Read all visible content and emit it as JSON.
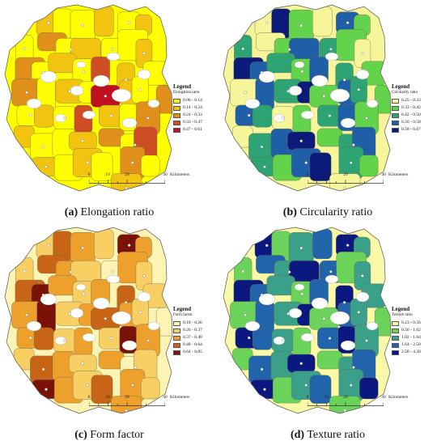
{
  "panels": [
    {
      "caption_letter": "(a)",
      "caption_text": "Elongation ratio",
      "legend_title": "Legend",
      "legend_field": "Elongation ratio",
      "classes": [
        {
          "label": "0.06 - 0.14",
          "color": "#ffff00"
        },
        {
          "label": "0.14 - 0.24",
          "color": "#f2c40f"
        },
        {
          "label": "0.24 - 0.33",
          "color": "#e0901a"
        },
        {
          "label": "0.33 - 0.47",
          "color": "#cf4d22"
        },
        {
          "label": "0.47 - 0.61",
          "color": "#c0101f"
        }
      ],
      "scale_ticks": [
        "0",
        "10",
        "20",
        "40"
      ],
      "scale_unit": "Kilometers"
    },
    {
      "caption_letter": "(b)",
      "caption_text": "Circularity ratio",
      "legend_title": "Legend",
      "legend_field": "Circularity ratio",
      "classes": [
        {
          "label": "0.25 - 0.33",
          "color": "#f7f59a"
        },
        {
          "label": "0.33 - 0.42",
          "color": "#63d34c"
        },
        {
          "label": "0.42 - 0.50",
          "color": "#2ea474"
        },
        {
          "label": "0.50 - 0.58",
          "color": "#1f5fa8"
        },
        {
          "label": "0.58 - 0.67",
          "color": "#0c1a7a"
        }
      ],
      "scale_ticks": [
        "0",
        "10",
        "20",
        "40"
      ],
      "scale_unit": "Kilometers"
    },
    {
      "caption_letter": "(c)",
      "caption_text": "Form factor",
      "legend_title": "Legend",
      "legend_field": "Form factor",
      "classes": [
        {
          "label": "0.18 - 0.26",
          "color": "#fdf4b4"
        },
        {
          "label": "0.26 - 0.37",
          "color": "#f7cf62"
        },
        {
          "label": "0.37 - 0.48",
          "color": "#eda02c"
        },
        {
          "label": "0.48 - 0.64",
          "color": "#c76416"
        },
        {
          "label": "0.64 - 0.85",
          "color": "#7a1208"
        }
      ],
      "scale_ticks": [
        "0",
        "10",
        "20",
        "40"
      ],
      "scale_unit": "Kilometers"
    },
    {
      "caption_letter": "(d)",
      "caption_text": "Texture ratio",
      "legend_title": "Legend",
      "legend_field": "Texture ratio",
      "classes": [
        {
          "label": "0.23 - 0.56",
          "color": "#f9f9a8"
        },
        {
          "label": "0.56 - 1.02",
          "color": "#6cd35a"
        },
        {
          "label": "1.02 - 1.64",
          "color": "#3aa08a"
        },
        {
          "label": "1.64 - 2.50",
          "color": "#2164ab"
        },
        {
          "label": "2.50 - 4.30",
          "color": "#0b1880"
        }
      ],
      "scale_ticks": [
        "0",
        "10",
        "20",
        "40"
      ],
      "scale_unit": "Kilometers"
    }
  ],
  "map_classes": [
    [
      1,
      0,
      0,
      1,
      0,
      1,
      0,
      2,
      0,
      1,
      0,
      0,
      1,
      2,
      0,
      1,
      0,
      3,
      1,
      0,
      2,
      0,
      1,
      0,
      4,
      1,
      0,
      2,
      0,
      1,
      0,
      3,
      1,
      0,
      2,
      1,
      0,
      0,
      1,
      2,
      0,
      3,
      1,
      0,
      1,
      0,
      2,
      0,
      1,
      0,
      4,
      1,
      0,
      2,
      0,
      1,
      0,
      0
    ],
    [
      0,
      4,
      1,
      0,
      3,
      1,
      2,
      0,
      1,
      3,
      2,
      1,
      0,
      4,
      3,
      2,
      1,
      3,
      2,
      1,
      0,
      3,
      2,
      4,
      1,
      3,
      2,
      1,
      3,
      2,
      0,
      1,
      2,
      3,
      1,
      0,
      2,
      3,
      4,
      1,
      2,
      3,
      2,
      1,
      3,
      4,
      2,
      1,
      0,
      3,
      2,
      1,
      4,
      2,
      3,
      1,
      0,
      2
    ],
    [
      1,
      3,
      2,
      1,
      4,
      2,
      1,
      3,
      2,
      1,
      0,
      2,
      1,
      3,
      4,
      2,
      1,
      2,
      3,
      1,
      2,
      4,
      1,
      2,
      3,
      2,
      1,
      0,
      2,
      3,
      1,
      2,
      1,
      4,
      2,
      1,
      3,
      2,
      1,
      2,
      0,
      1,
      4,
      2,
      1,
      3,
      2,
      1,
      2,
      3,
      1,
      0,
      2,
      4,
      1,
      2,
      3,
      1
    ],
    [
      4,
      1,
      2,
      3,
      4,
      2,
      1,
      3,
      2,
      4,
      3,
      1,
      2,
      4,
      3,
      2,
      1,
      3,
      4,
      2,
      1,
      3,
      2,
      4,
      1,
      3,
      2,
      1,
      4,
      3,
      2,
      1,
      3,
      4,
      2,
      1,
      3,
      2,
      4,
      1,
      2,
      3,
      4,
      1,
      2,
      3,
      2,
      4,
      1,
      3,
      4,
      2,
      1,
      3,
      2,
      4,
      4,
      3
    ]
  ]
}
